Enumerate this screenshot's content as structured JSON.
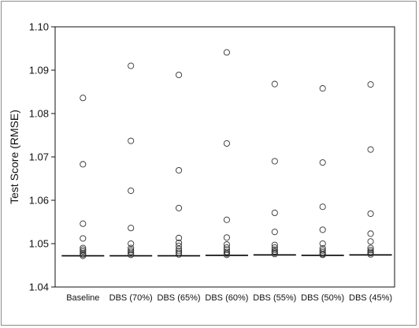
{
  "chart_data": {
    "type": "scatter",
    "title": "",
    "xlabel": "",
    "ylabel": "Test Score (RMSE)",
    "ylim": [
      1.04,
      1.1
    ],
    "yticks": [
      "1.04",
      "1.05",
      "1.06",
      "1.07",
      "1.08",
      "1.09",
      "1.10"
    ],
    "categories": [
      "Baseline",
      "DBS (70%)",
      "DBS (65%)",
      "DBS (60%)",
      "DBS (55%)",
      "DBS (50%)",
      "DBS (45%)"
    ],
    "median": [
      1.0472,
      1.0472,
      1.0472,
      1.0473,
      1.0474,
      1.0473,
      1.0474
    ],
    "points": [
      [
        1.0836,
        1.0683,
        1.0546,
        1.0512,
        1.049,
        1.0486,
        1.0482,
        1.0478,
        1.0475,
        1.0472
      ],
      [
        1.091,
        1.0737,
        1.0622,
        1.0536,
        1.05,
        1.049,
        1.0485,
        1.0481,
        1.0477,
        1.0474
      ],
      [
        1.0889,
        1.0669,
        1.0582,
        1.0513,
        1.0502,
        1.0495,
        1.0488,
        1.0483,
        1.0479,
        1.0475
      ],
      [
        1.0941,
        1.0731,
        1.0555,
        1.0514,
        1.0498,
        1.0491,
        1.0486,
        1.0481,
        1.0477,
        1.0474
      ],
      [
        1.0868,
        1.069,
        1.0571,
        1.0527,
        1.0497,
        1.0491,
        1.0486,
        1.0482,
        1.0479,
        1.0476
      ],
      [
        1.0858,
        1.0687,
        1.0585,
        1.0532,
        1.05,
        1.0489,
        1.0484,
        1.048,
        1.0476,
        1.0474
      ],
      [
        1.0867,
        1.0717,
        1.0569,
        1.0523,
        1.0505,
        1.049,
        1.0485,
        1.0481,
        1.0478,
        1.0475
      ]
    ]
  }
}
